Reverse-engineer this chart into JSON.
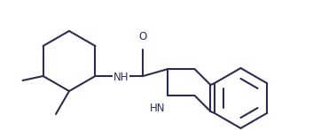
{
  "bg_color": "#ffffff",
  "line_color": "#2d2d50",
  "line_width": 1.5,
  "text_color": "#2d2d50",
  "font_size": 8.5,
  "figsize": [
    3.53,
    1.47
  ],
  "dpi": 100,
  "xlim": [
    0,
    353
  ],
  "ylim": [
    0,
    147
  ]
}
